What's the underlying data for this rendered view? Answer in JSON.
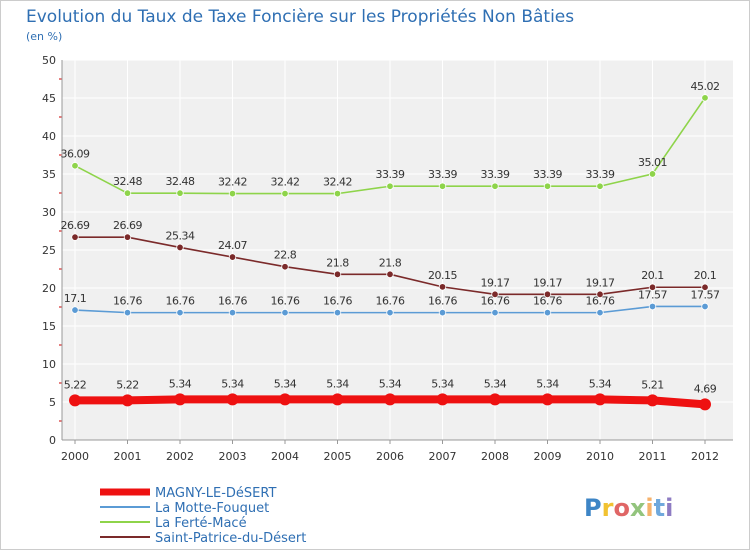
{
  "chart_data": {
    "type": "line",
    "title": "Evolution du Taux de Taxe Foncière sur les Propriétés Non Bâties",
    "ylabel": "(en %)",
    "xlabel": "",
    "ylim": [
      0,
      50
    ],
    "yticks": [
      0,
      5,
      10,
      15,
      20,
      25,
      30,
      35,
      40,
      45,
      50
    ],
    "grid": true,
    "legend_position": "bottom",
    "x": [
      "2000",
      "2001",
      "2002",
      "2003",
      "2004",
      "2005",
      "2006",
      "2007",
      "2008",
      "2009",
      "2010",
      "2011",
      "2012"
    ],
    "series": [
      {
        "name": "MAGNY-LE-DéSERT",
        "color": "#ee1111",
        "values": [
          5.22,
          5.22,
          5.34,
          5.34,
          5.34,
          5.34,
          5.34,
          5.34,
          5.34,
          5.34,
          5.34,
          5.21,
          4.69
        ],
        "labels": [
          "5.22",
          "5.22",
          "5.34",
          "5.34",
          "5.34",
          "5.34",
          "5.34",
          "5.34",
          "5.34",
          "5.34",
          "5.34",
          "5.21",
          "4.69"
        ]
      },
      {
        "name": "La Motte-Fouquet",
        "color": "#5b9bd5",
        "values": [
          17.1,
          16.76,
          16.76,
          16.76,
          16.76,
          16.76,
          16.76,
          16.76,
          16.76,
          16.76,
          16.76,
          17.57,
          17.57
        ],
        "labels": [
          "17.1",
          "16.76",
          "16.76",
          "16.76",
          "16.76",
          "16.76",
          "16.76",
          "16.76",
          "16.76",
          "16.76",
          "16.76",
          "17.57",
          "17.57"
        ]
      },
      {
        "name": "La Ferté-Macé",
        "color": "#8ed44a",
        "values": [
          36.09,
          32.48,
          32.48,
          32.42,
          32.42,
          32.42,
          33.39,
          33.39,
          33.39,
          33.39,
          33.39,
          35.01,
          45.02
        ],
        "labels": [
          "36.09",
          "32.48",
          "32.48",
          "32.42",
          "32.42",
          "32.42",
          "33.39",
          "33.39",
          "33.39",
          "33.39",
          "33.39",
          "35.01",
          "45.02"
        ]
      },
      {
        "name": "Saint-Patrice-du-Désert",
        "color": "#7b2a2a",
        "values": [
          26.69,
          26.69,
          25.34,
          24.07,
          22.8,
          21.8,
          21.8,
          20.15,
          19.17,
          19.17,
          19.17,
          20.1,
          20.1
        ],
        "labels": [
          "26.69",
          "26.69",
          "25.34",
          "24.07",
          "22.8",
          "21.8",
          "21.8",
          "20.15",
          "19.17",
          "19.17",
          "19.17",
          "20.1",
          "20.1"
        ]
      }
    ]
  },
  "logo": {
    "text": "Proxiti",
    "colors": [
      "#3d85c6",
      "#f1c232",
      "#e06666",
      "#93c47d",
      "#f6b26b",
      "#6fa8dc",
      "#8e7cc3"
    ]
  }
}
